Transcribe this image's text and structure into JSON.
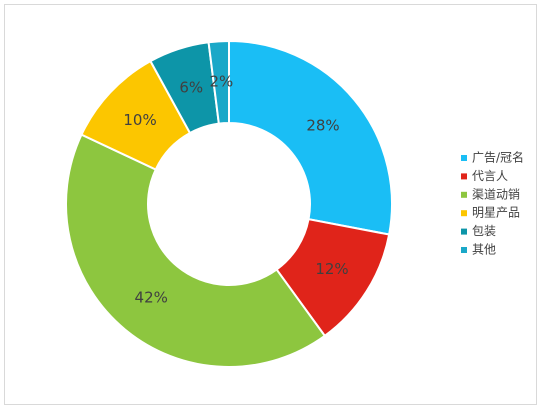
{
  "chart_data": {
    "type": "donut",
    "categories": [
      "广告/冠名",
      "代言人",
      "渠道动销",
      "明星产品",
      "包装",
      "其他"
    ],
    "values": [
      28,
      12,
      42,
      10,
      6,
      2
    ],
    "value_labels": [
      "28%",
      "12%",
      "42%",
      "10%",
      "6%",
      "2%"
    ],
    "colors": [
      "#1abef5",
      "#e0241a",
      "#8dc63f",
      "#fcc600",
      "#0d95a8",
      "#1aa8c8"
    ],
    "legend": "right"
  }
}
